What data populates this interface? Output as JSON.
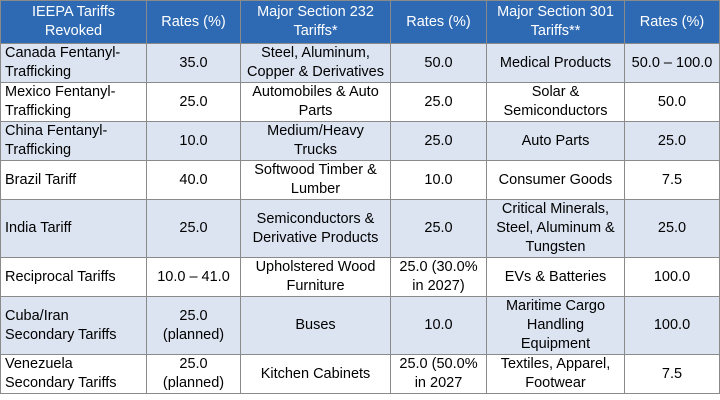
{
  "colors": {
    "header_bg": "#2e6ab3",
    "row_odd": "#dce4f2",
    "row_even": "#ffffff",
    "border": "#8a8a8a"
  },
  "table": {
    "headers": [
      "IEEPA Tariffs Revoked",
      "Rates (%)",
      "Major Section 232 Tariffs*",
      "Rates (%)",
      "Major Section 301 Tariffs**",
      "Rates (%)"
    ],
    "rows": [
      [
        "Canada Fentanyl-Trafficking",
        "35.0",
        "Steel, Aluminum, Copper & Derivatives",
        "50.0",
        "Medical Products",
        "50.0 – 100.0"
      ],
      [
        "Mexico Fentanyl-Trafficking",
        "25.0",
        "Automobiles & Auto Parts",
        "25.0",
        "Solar & Semiconductors",
        "50.0"
      ],
      [
        "China Fentanyl-Trafficking",
        "10.0",
        "Medium/Heavy Trucks",
        "25.0",
        "Auto Parts",
        "25.0"
      ],
      [
        "Brazil Tariff",
        "40.0",
        "Softwood Timber & Lumber",
        "10.0",
        "Consumer Goods",
        "7.5"
      ],
      [
        "India Tariff",
        "25.0",
        "Semiconductors & Derivative Products",
        "25.0",
        "Critical Minerals, Steel, Aluminum & Tungsten",
        "25.0"
      ],
      [
        "Reciprocal Tariffs",
        "10.0 – 41.0",
        "Upholstered Wood Furniture",
        "25.0 (30.0% in 2027)",
        "EVs & Batteries",
        "100.0"
      ],
      [
        "Cuba/Iran Secondary Tariffs",
        "25.0 (planned)",
        "Buses",
        "10.0",
        "Maritime Cargo Handling Equipment",
        "100.0"
      ],
      [
        "Venezuela Secondary Tariffs",
        "25.0 (planned)",
        "Kitchen Cabinets",
        "25.0 (50.0% in 2027",
        "Textiles, Apparel, Footwear",
        "7.5"
      ]
    ]
  }
}
